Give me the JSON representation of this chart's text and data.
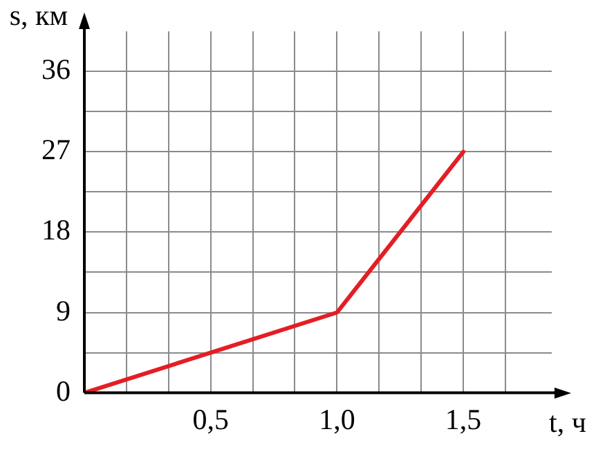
{
  "chart_data": {
    "type": "line",
    "xlabel": "t, ч",
    "ylabel": "s, км",
    "x": [
      0,
      1,
      1.5
    ],
    "series": [
      {
        "color": "#e31e24",
        "values": [
          0,
          9,
          27
        ]
      }
    ],
    "xlim": [
      0,
      1.85
    ],
    "ylim": [
      0,
      40.5
    ],
    "xticks": [
      {
        "value": 0,
        "label": null
      },
      {
        "value": 0.1667,
        "label": null
      },
      {
        "value": 0.3333,
        "label": null
      },
      {
        "value": 0.5,
        "label": "0,5"
      },
      {
        "value": 0.6667,
        "label": null
      },
      {
        "value": 0.8333,
        "label": null
      },
      {
        "value": 1,
        "label": "1,0"
      },
      {
        "value": 1.1667,
        "label": null
      },
      {
        "value": 1.3333,
        "label": null
      },
      {
        "value": 1.5,
        "label": "1,5"
      },
      {
        "value": 1.6667,
        "label": null
      }
    ],
    "yticks": [
      0,
      {
        "value": 4.5,
        "label": null
      },
      9,
      {
        "value": 13.5,
        "label": null
      },
      18,
      {
        "value": 22.5,
        "label": null
      },
      27,
      {
        "value": 31.5,
        "label": null
      },
      36
    ],
    "grid": true,
    "legend": false,
    "marker": "none",
    "line_style": "solid"
  }
}
